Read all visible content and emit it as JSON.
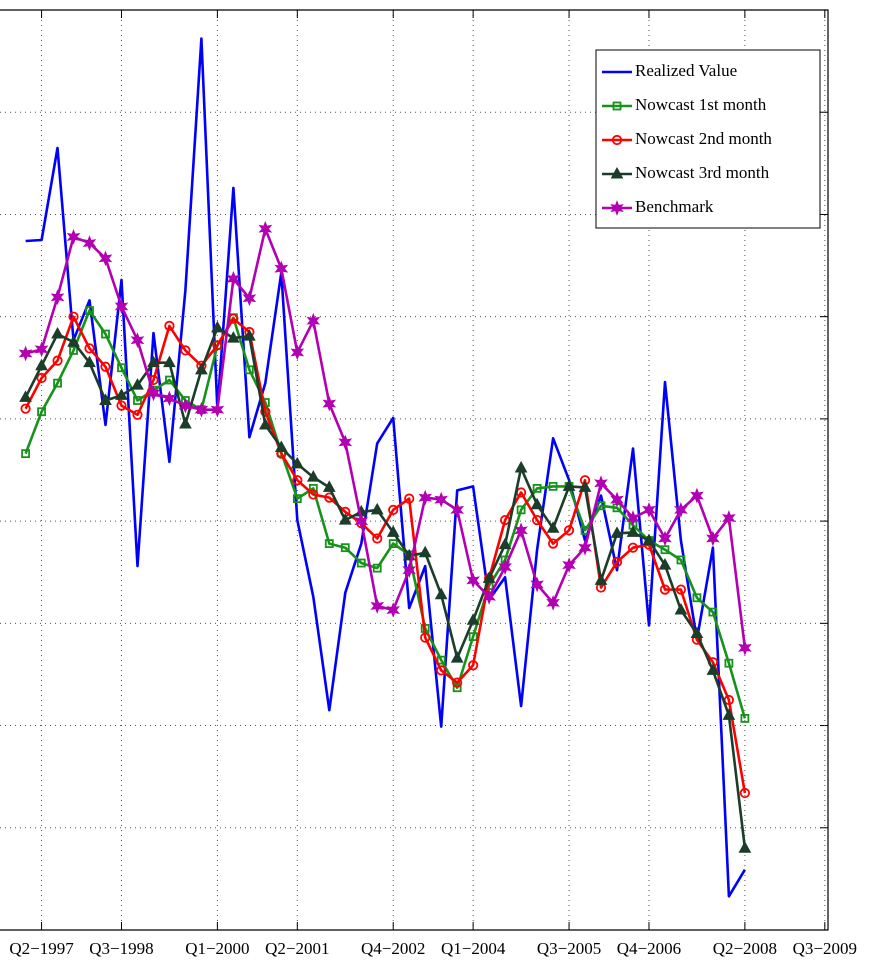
{
  "chart_data": {
    "type": "line",
    "x": [
      1997,
      1997.25,
      1997.5,
      1997.75,
      1998,
      1998.25,
      1998.5,
      1998.75,
      1999,
      1999.25,
      1999.5,
      1999.75,
      2000,
      2000.25,
      2000.5,
      2000.75,
      2001,
      2001.25,
      2001.5,
      2001.75,
      2002,
      2002.25,
      2002.5,
      2002.75,
      2003,
      2003.25,
      2003.5,
      2003.75,
      2004,
      2004.25,
      2004.5,
      2004.75,
      2005,
      2005.25,
      2005.5,
      2005.75,
      2006,
      2006.25,
      2006.5,
      2006.75,
      2007,
      2007.25,
      2007.5,
      2007.75,
      2008,
      2008.25
    ],
    "series": [
      {
        "name": "Realized Value",
        "color": "#0000ff",
        "marker": "none",
        "values": [
          274,
          275,
          365,
          177,
          216,
          94,
          236,
          -44,
          184,
          58,
          226,
          472,
          109,
          326,
          82,
          135,
          243,
          1,
          -74,
          -185,
          -70,
          -22,
          76,
          101,
          -85,
          -44,
          -201,
          30,
          34,
          -77,
          -55,
          -181,
          -28,
          81,
          40,
          -19,
          25,
          -48,
          71,
          -102,
          136,
          -19,
          -116,
          -26,
          -367,
          -341
        ]
      },
      {
        "name": "Nowcast 1st month",
        "color": "#17921a",
        "marker": "square",
        "values": [
          66,
          107,
          135,
          167,
          206,
          183,
          150,
          118,
          128,
          138,
          118,
          109,
          172,
          199,
          148,
          116,
          67,
          22,
          32,
          -22,
          -26,
          -41,
          -46,
          -22,
          -33,
          -105,
          -136,
          -163,
          -113,
          -63,
          -38,
          11,
          32,
          34,
          34,
          -9,
          15,
          13,
          -4,
          -19,
          -28,
          -38,
          -75,
          -89,
          -139,
          -193
        ]
      },
      {
        "name": "Nowcast 2nd month",
        "color": "#ff0000",
        "marker": "circle",
        "values": [
          110,
          140,
          157,
          200,
          169,
          151,
          113,
          104,
          138,
          191,
          167,
          152,
          172,
          198,
          185,
          107,
          66,
          40,
          26,
          23,
          9,
          -2,
          -17,
          11,
          22,
          -114,
          -146,
          -158,
          -141,
          -56,
          1,
          28,
          1,
          -22,
          -9,
          40,
          -65,
          -40,
          -26,
          -23,
          -67,
          -67,
          -116,
          -138,
          -175,
          -266
        ]
      },
      {
        "name": "Nowcast 3rd month",
        "color": "#1b3d2a",
        "marker": "triangle",
        "values": [
          121,
          152,
          183,
          175,
          155,
          118,
          123,
          133,
          155,
          155,
          95,
          148,
          189,
          179,
          181,
          94,
          72,
          56,
          43,
          33,
          1,
          9,
          11,
          -11,
          -34,
          -31,
          -72,
          -134,
          -97,
          -56,
          -23,
          52,
          16,
          -7,
          34,
          33,
          -58,
          -12,
          -11,
          -19,
          -43,
          -87,
          -110,
          -146,
          -190,
          -320
        ]
      },
      {
        "name": "Benchmark",
        "color": "#b200b2",
        "marker": "star",
        "values": [
          164,
          168,
          219,
          278,
          272,
          257,
          210,
          177,
          125,
          120,
          113,
          109,
          109,
          237,
          218,
          286,
          247,
          165,
          196,
          115,
          77,
          0,
          -83,
          -87,
          -48,
          23,
          21,
          11,
          -58,
          -74,
          -45,
          -9,
          -62,
          -80,
          -43,
          -26,
          37,
          21,
          3,
          11,
          -17,
          11,
          25,
          -17,
          3,
          -124
        ]
      }
    ],
    "xlim": [
      1996.6,
      2009.55
    ],
    "xticks": [
      {
        "value": 1997.25,
        "label": "Q2−1997"
      },
      {
        "value": 1998.5,
        "label": "Q3−1998"
      },
      {
        "value": 2000,
        "label": "Q1−2000"
      },
      {
        "value": 2001.25,
        "label": "Q2−2001"
      },
      {
        "value": 2002.75,
        "label": "Q4−2002"
      },
      {
        "value": 2004,
        "label": "Q1−2004"
      },
      {
        "value": 2005.5,
        "label": "Q3−2005"
      },
      {
        "value": 2006.75,
        "label": "Q4−2006"
      },
      {
        "value": 2008.25,
        "label": "Q2−2008"
      },
      {
        "value": 2009.5,
        "label": "Q3−2009"
      }
    ],
    "ylim": [
      -400,
      500
    ],
    "yticks": [
      -300,
      -200,
      -100,
      0,
      100,
      200,
      300,
      400
    ],
    "grid": true,
    "legend": "upper right"
  }
}
